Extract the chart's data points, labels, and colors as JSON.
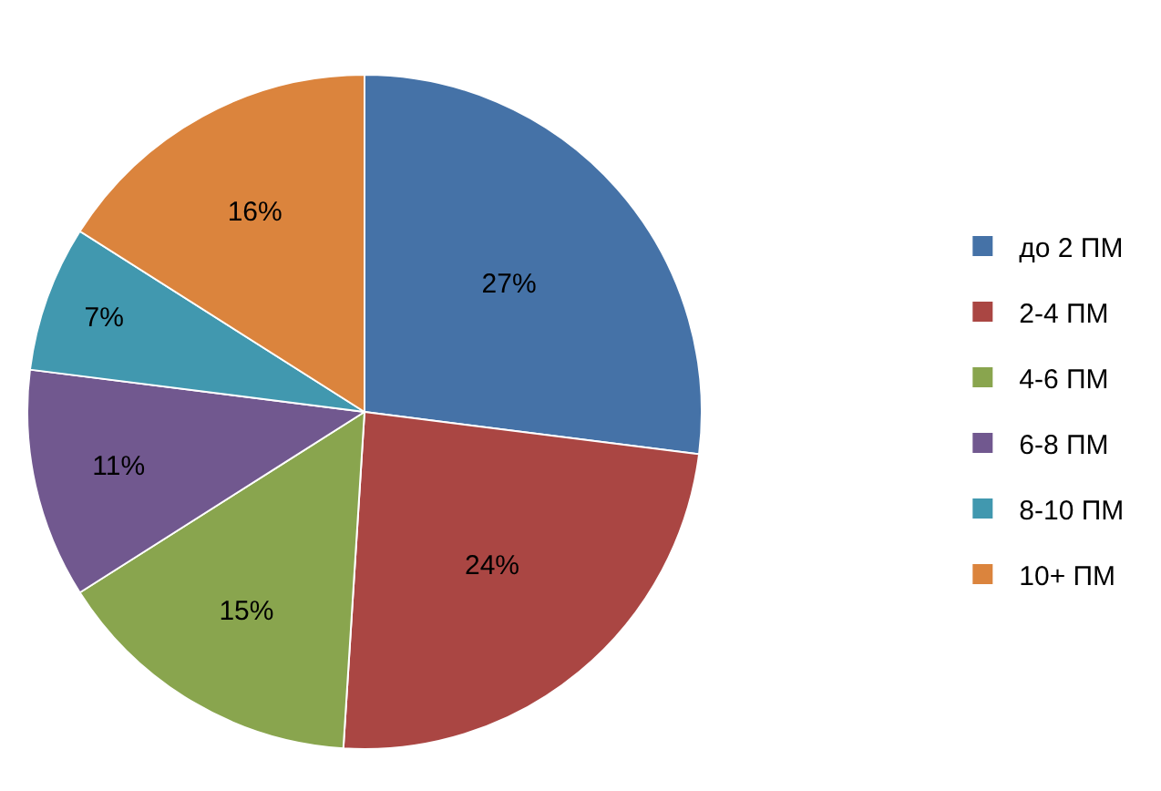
{
  "chart_data": {
    "type": "pie",
    "categories": [
      "до 2 ПМ",
      "2-4 ПМ",
      "4-6 ПМ",
      "6-8 ПМ",
      "8-10 ПМ",
      "10+ ПМ"
    ],
    "values": [
      27,
      24,
      15,
      11,
      7,
      16
    ],
    "value_labels": [
      "27%",
      "24%",
      "15%",
      "11%",
      "7%",
      "16%"
    ],
    "colors": [
      "#4572a7",
      "#aa4643",
      "#89a54e",
      "#71588f",
      "#4198af",
      "#db843d"
    ],
    "legend": "right"
  }
}
